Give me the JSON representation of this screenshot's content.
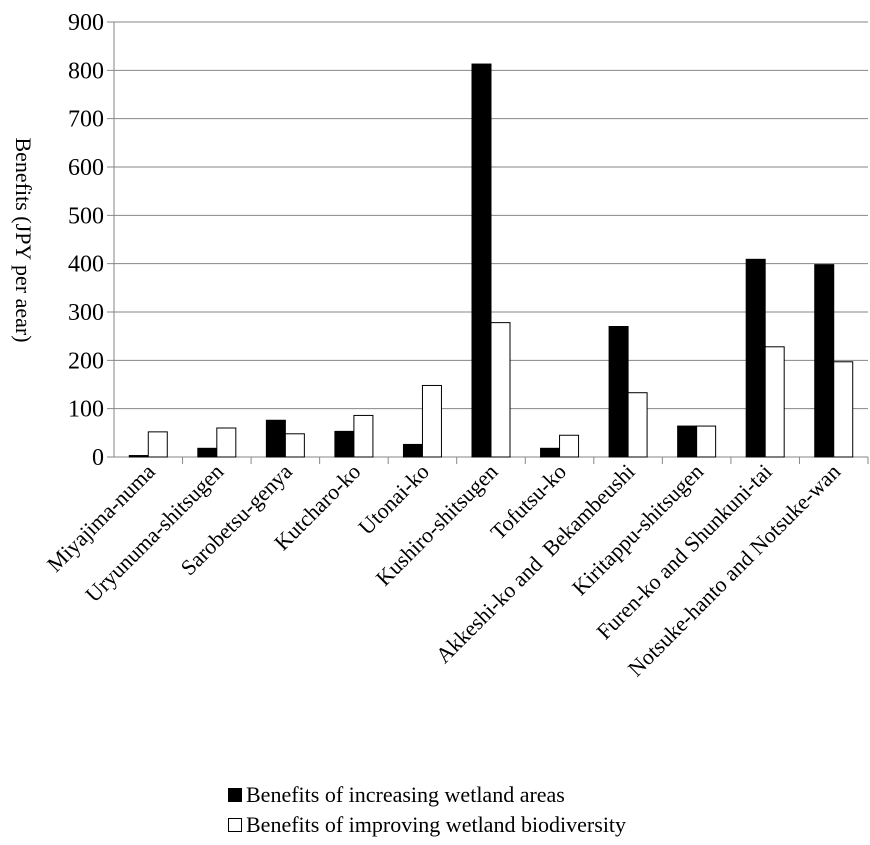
{
  "chart_data": {
    "type": "bar",
    "title": "",
    "xlabel": "",
    "ylabel": "Benefits (JPY per aear)",
    "ylim": [
      0,
      900
    ],
    "yticks": [
      0,
      100,
      200,
      300,
      400,
      500,
      600,
      700,
      800,
      900
    ],
    "grid": true,
    "legend_position": "bottom",
    "categories": [
      "Miyajima-numa",
      "Uryunuma-shitsugen",
      "Sarobetsu-genya",
      "Kutcharo-ko",
      "Utonai-ko",
      "Kushiro-shitsugen",
      "Tofutsu-ko",
      "Akkeshi-ko and  Bekambeushi",
      "Kiritappu-shitsugen",
      "Furen-ko and Shunkuni-tai",
      "Notsuke-hanto and Notsuke-wan"
    ],
    "series": [
      {
        "name": "Benefits of increasing wetland areas",
        "color": "#000000",
        "values": [
          3,
          18,
          76,
          53,
          26,
          813,
          18,
          270,
          64,
          409,
          398
        ]
      },
      {
        "name": "Benefits of improving wetland biodiversity",
        "color": "#ffffff",
        "values": [
          52,
          60,
          48,
          86,
          148,
          278,
          45,
          133,
          64,
          228,
          197
        ]
      }
    ]
  }
}
